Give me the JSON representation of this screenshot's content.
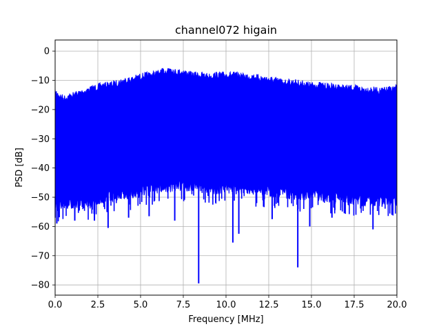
{
  "chart_data": {
    "type": "line",
    "title": "channel072 higain",
    "xlabel": "Frequency [MHz]",
    "ylabel": "PSD [dB]",
    "xlim": [
      0,
      20
    ],
    "ylim": [
      -83.5,
      3.8
    ],
    "x_ticks": [
      0.0,
      2.5,
      5.0,
      7.5,
      10.0,
      12.5,
      15.0,
      17.5,
      20.0
    ],
    "x_tick_labels": [
      "0.0",
      "2.5",
      "5.0",
      "7.5",
      "10.0",
      "12.5",
      "15.0",
      "17.5",
      "20.0"
    ],
    "y_ticks": [
      0,
      -10,
      -20,
      -30,
      -40,
      -50,
      -60,
      -70,
      -80
    ],
    "y_tick_labels": [
      "0",
      "−10",
      "−20",
      "−30",
      "−40",
      "−50",
      "−60",
      "−70",
      "−80"
    ],
    "grid": true,
    "series": [
      {
        "color": "#0000ff",
        "upper_envelope": {
          "x": [
            0.0,
            0.5,
            1.0,
            1.5,
            2.0,
            2.5,
            3.0,
            3.5,
            4.0,
            4.5,
            5.0,
            5.5,
            6.0,
            6.5,
            6.75,
            7.0,
            7.5,
            8.0,
            8.5,
            9.0,
            9.5,
            10.0,
            10.5,
            11.0,
            11.5,
            12.0,
            12.5,
            13.0,
            13.5,
            14.0,
            14.5,
            15.0,
            15.5,
            16.0,
            16.5,
            17.0,
            17.5,
            18.0,
            18.5,
            19.0,
            19.5,
            20.0
          ],
          "y": [
            -13,
            -15,
            -14,
            -13,
            -12,
            -11,
            -10.5,
            -10,
            -9,
            -8.5,
            -7.5,
            -7,
            -6.5,
            -5.5,
            -4.5,
            -6,
            -6,
            -7,
            -7,
            -7.5,
            -7,
            -7,
            -7,
            -7.5,
            -7.5,
            -8,
            -8.5,
            -9,
            -9.5,
            -9.5,
            -10,
            -10.5,
            -10.5,
            -11,
            -11,
            -11.5,
            -11.5,
            -12,
            -12,
            -12.5,
            -12,
            -11.5
          ]
        },
        "lower_envelope": {
          "x": [
            0.0,
            1.0,
            2.0,
            3.0,
            4.0,
            5.0,
            6.0,
            7.0,
            8.0,
            9.0,
            10.0,
            11.0,
            12.0,
            13.0,
            14.0,
            15.0,
            16.0,
            17.0,
            18.0,
            19.0,
            20.0
          ],
          "y": [
            -53,
            -52,
            -52,
            -50,
            -49,
            -48,
            -47,
            -46,
            -46,
            -47,
            -47,
            -47,
            -48,
            -48,
            -49,
            -49,
            -50,
            -50,
            -51,
            -51,
            -51
          ]
        },
        "notable_minima": [
          {
            "x": 0.1,
            "y": -59
          },
          {
            "x": 1.15,
            "y": -58
          },
          {
            "x": 2.3,
            "y": -58
          },
          {
            "x": 3.1,
            "y": -60.5
          },
          {
            "x": 4.3,
            "y": -57
          },
          {
            "x": 5.5,
            "y": -56.5
          },
          {
            "x": 7.0,
            "y": -58
          },
          {
            "x": 8.4,
            "y": -79.5
          },
          {
            "x": 10.4,
            "y": -65.5
          },
          {
            "x": 10.75,
            "y": -62.5
          },
          {
            "x": 12.7,
            "y": -57.5
          },
          {
            "x": 14.2,
            "y": -74
          },
          {
            "x": 14.9,
            "y": -60
          },
          {
            "x": 16.2,
            "y": -57
          },
          {
            "x": 18.6,
            "y": -61
          }
        ]
      }
    ]
  }
}
